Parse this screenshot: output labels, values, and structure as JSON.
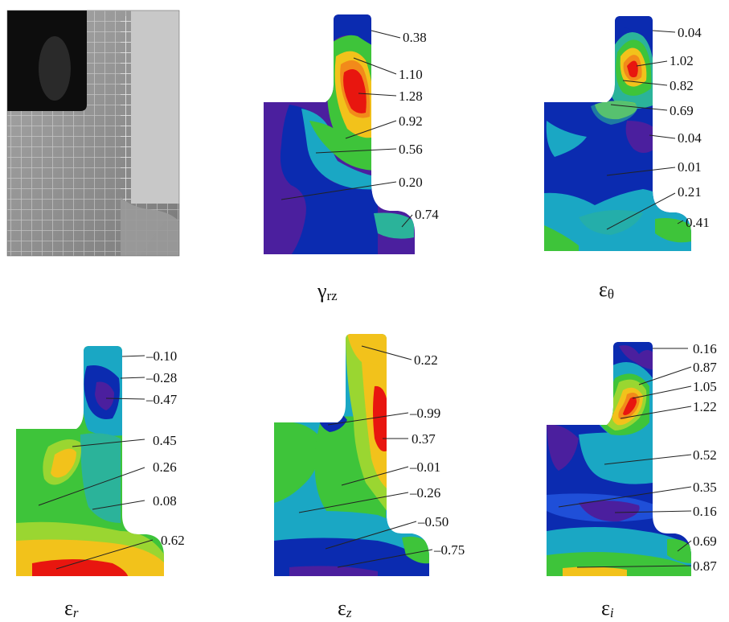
{
  "panels": [
    {
      "key": "photo",
      "caption": null
    },
    {
      "key": "grz",
      "caption": {
        "sym": "γ",
        "sub": "rz"
      },
      "labels": [
        "0.38",
        "1.10",
        "1.28",
        "0.92",
        "0.56",
        "0.20",
        "0.74"
      ]
    },
    {
      "key": "et",
      "caption": {
        "sym": "ε",
        "sub": "θ"
      },
      "labels": [
        "0.04",
        "1.02",
        "0.82",
        "0.69",
        "0.04",
        "0.01",
        "0.21",
        "0.41"
      ]
    },
    {
      "key": "er",
      "caption": {
        "sym": "ε",
        "sub": "r"
      },
      "labels": [
        "–0.10",
        "–0.28",
        "–0.47",
        "0.45",
        "0.26",
        "0.08",
        "0.62"
      ]
    },
    {
      "key": "ez",
      "caption": {
        "sym": "ε",
        "sub": "z"
      },
      "labels": [
        "0.22",
        "–0.99",
        "0.37",
        "–0.01",
        "–0.26",
        "–0.50",
        "–0.75"
      ]
    },
    {
      "key": "ei",
      "caption": {
        "sym": "ε",
        "sub": "i"
      },
      "labels": [
        "0.16",
        "0.87",
        "1.05",
        "1.22",
        "0.52",
        "0.35",
        "0.16",
        "0.69",
        "0.87"
      ]
    }
  ],
  "colors": {
    "violet": "#4b1f9e",
    "navy": "#0b2bb0",
    "blue": "#1f4fd8",
    "cyan": "#1aa7c4",
    "teal": "#2bb39a",
    "green": "#3ec43a",
    "lime": "#9ad631",
    "yellow": "#f2c21b",
    "orange": "#f28a1a",
    "red": "#e8160f"
  }
}
